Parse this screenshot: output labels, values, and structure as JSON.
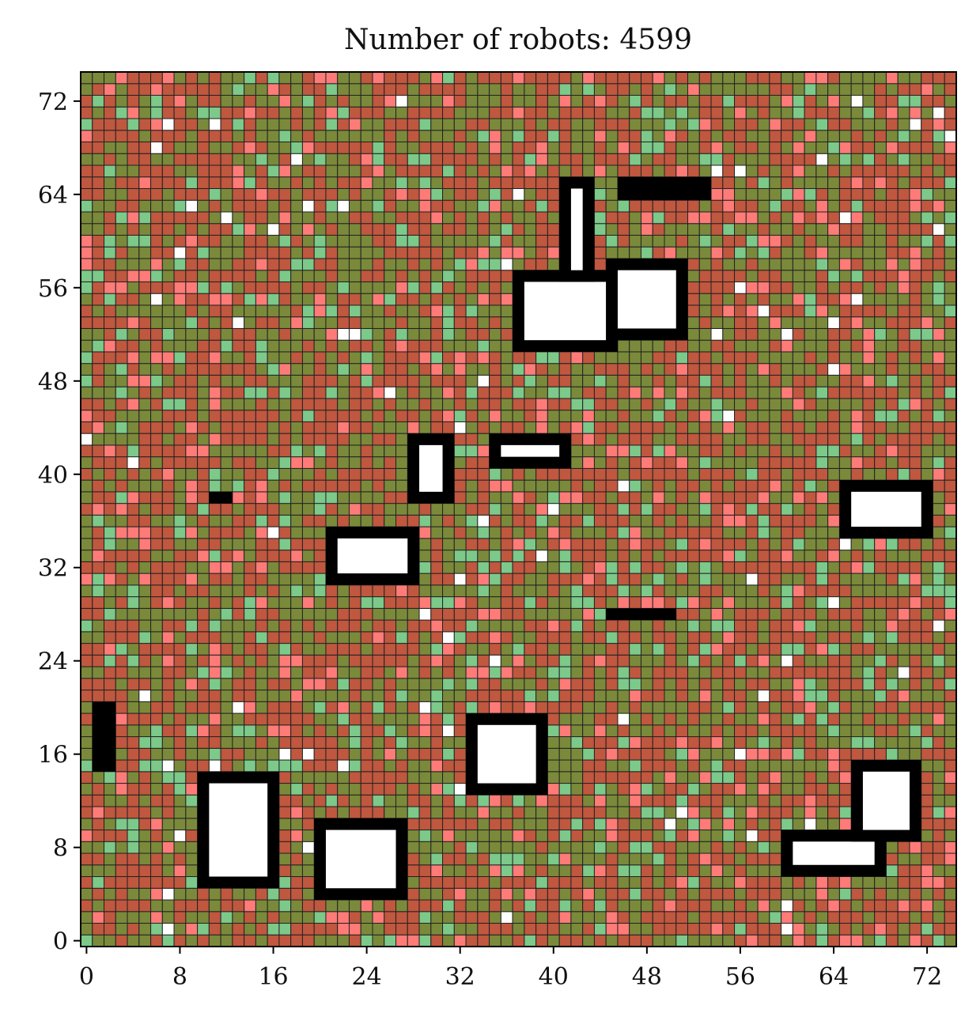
{
  "chart_data": {
    "type": "heatmap",
    "title": "Number of robots: 4599",
    "xlabel": "",
    "ylabel": "",
    "grid_size": [
      75,
      75
    ],
    "xlim": [
      -0.5,
      74.5
    ],
    "ylim": [
      -0.5,
      74.5
    ],
    "x_ticks": [
      0,
      8,
      16,
      24,
      32,
      40,
      48,
      56,
      64,
      72
    ],
    "y_ticks": [
      0,
      8,
      16,
      24,
      32,
      40,
      48,
      56,
      64,
      72
    ],
    "grid": true,
    "legend": "none",
    "colors": {
      "robot_red": "#c0573f",
      "robot_green": "#7a8a3a",
      "robot_pink": "#ff7b78",
      "robot_light_green": "#7cc98a",
      "empty": "#ffffff",
      "obstacle": "#000000",
      "gridline": "#222222"
    },
    "obstacles": [
      {
        "name": "obstacle-a",
        "x": [
          1,
          2
        ],
        "y": [
          15,
          20
        ],
        "fill": "solid"
      },
      {
        "name": "obstacle-b",
        "x": [
          10,
          16
        ],
        "y": [
          5,
          14
        ],
        "fill": "outline"
      },
      {
        "name": "obstacle-c",
        "x": [
          20,
          27
        ],
        "y": [
          4,
          10
        ],
        "fill": "outline"
      },
      {
        "name": "obstacle-d",
        "x": [
          33,
          39
        ],
        "y": [
          13,
          19
        ],
        "fill": "outline"
      },
      {
        "name": "obstacle-e",
        "x": [
          60,
          68
        ],
        "y": [
          6,
          9
        ],
        "fill": "outline"
      },
      {
        "name": "obstacle-f",
        "x": [
          66,
          71
        ],
        "y": [
          9,
          15
        ],
        "fill": "outline"
      },
      {
        "name": "obstacle-g",
        "x": [
          45,
          50
        ],
        "y": [
          28,
          28
        ],
        "fill": "solid"
      },
      {
        "name": "obstacle-h",
        "x": [
          21,
          28
        ],
        "y": [
          31,
          35
        ],
        "fill": "outline"
      },
      {
        "name": "obstacle-i",
        "x": [
          11,
          12
        ],
        "y": [
          38,
          38
        ],
        "fill": "solid"
      },
      {
        "name": "obstacle-j",
        "x": [
          28,
          31
        ],
        "y": [
          38,
          43
        ],
        "fill": "outline"
      },
      {
        "name": "obstacle-k",
        "x": [
          35,
          41
        ],
        "y": [
          41,
          43
        ],
        "fill": "outline"
      },
      {
        "name": "obstacle-l",
        "x": [
          65,
          72
        ],
        "y": [
          35,
          39
        ],
        "fill": "outline"
      },
      {
        "name": "obstacle-m",
        "x": [
          37,
          45
        ],
        "y": [
          51,
          57
        ],
        "fill": "outline"
      },
      {
        "name": "obstacle-n",
        "x": [
          45,
          51
        ],
        "y": [
          52,
          58
        ],
        "fill": "outline"
      },
      {
        "name": "obstacle-o",
        "x": [
          41,
          43
        ],
        "y": [
          57,
          65
        ],
        "fill": "outline"
      },
      {
        "name": "obstacle-p",
        "x": [
          46,
          53
        ],
        "y": [
          64,
          65
        ],
        "fill": "solid"
      }
    ]
  }
}
